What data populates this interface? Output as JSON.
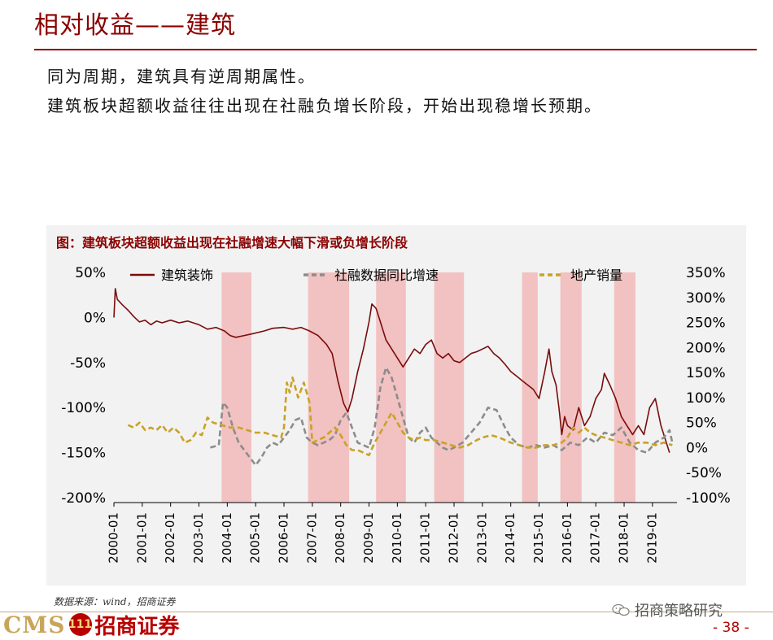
{
  "slide": {
    "title": "相对收益——建筑",
    "bullet1": "同为周期，建筑具有逆周期属性。",
    "bullet2": "建筑板块超额收益往往出现在社融负增长阶段，开始出现稳增长预期。",
    "source": "数据来源：wind，招商证券",
    "wechat": "招商策略研究",
    "page": "- 38 -",
    "logo_cms": "CMS",
    "logo_badge": "111",
    "logo_name": "招商证券",
    "colors": {
      "accent": "#8b0000",
      "series1": "#7a0c0c",
      "series2": "#8c8c8c",
      "series3": "#c9a227",
      "band": "#f2b8b8"
    }
  },
  "chart_data": {
    "type": "line",
    "title": "图：建筑板块超额收益出现在社融增速大幅下滑或负增长阶段",
    "x_tick_labels": [
      "2000-01",
      "2001-01",
      "2002-01",
      "2003-01",
      "2004-01",
      "2005-01",
      "2006-01",
      "2007-01",
      "2008-01",
      "2009-01",
      "2010-01",
      "2011-01",
      "2012-01",
      "2013-01",
      "2014-01",
      "2015-01",
      "2016-01",
      "2017-01",
      "2018-01",
      "2019-01"
    ],
    "y_left": {
      "ticks": [
        "50%",
        "0%",
        "-50%",
        "-100%",
        "-150%",
        "-200%"
      ],
      "range": [
        -200,
        50
      ]
    },
    "y_right": {
      "ticks": [
        "350%",
        "300%",
        "250%",
        "200%",
        "150%",
        "100%",
        "50%",
        "0%",
        "-50%",
        "-100%"
      ],
      "range": [
        -100,
        350
      ]
    },
    "legend": [
      "建筑装饰",
      "社融数据同比增速",
      "地产销量"
    ],
    "legend_position": "top",
    "shaded_periods": [
      [
        2003.8,
        2004.85
      ],
      [
        2006.85,
        2008.3
      ],
      [
        2009.25,
        2010.3
      ],
      [
        2011.3,
        2012.35
      ],
      [
        2014.4,
        2014.95
      ],
      [
        2015.75,
        2016.5
      ],
      [
        2017.65,
        2018.4
      ]
    ],
    "series": [
      {
        "name": "建筑装饰",
        "axis": "left",
        "points": [
          [
            2000.0,
            0
          ],
          [
            2000.05,
            32
          ],
          [
            2000.12,
            20
          ],
          [
            2000.3,
            14
          ],
          [
            2000.5,
            8
          ],
          [
            2000.7,
            1
          ],
          [
            2000.9,
            -5
          ],
          [
            2001.1,
            -3
          ],
          [
            2001.3,
            -8
          ],
          [
            2001.5,
            -4
          ],
          [
            2001.7,
            -6
          ],
          [
            2002.0,
            -3
          ],
          [
            2002.3,
            -6
          ],
          [
            2002.6,
            -4
          ],
          [
            2003.0,
            -8
          ],
          [
            2003.3,
            -13
          ],
          [
            2003.6,
            -11
          ],
          [
            2003.9,
            -15
          ],
          [
            2004.1,
            -20
          ],
          [
            2004.3,
            -22
          ],
          [
            2004.6,
            -20
          ],
          [
            2004.9,
            -18
          ],
          [
            2005.3,
            -15
          ],
          [
            2005.6,
            -12
          ],
          [
            2006.0,
            -11
          ],
          [
            2006.3,
            -13
          ],
          [
            2006.6,
            -11
          ],
          [
            2006.9,
            -15
          ],
          [
            2007.2,
            -20
          ],
          [
            2007.5,
            -30
          ],
          [
            2007.7,
            -40
          ],
          [
            2007.9,
            -70
          ],
          [
            2008.1,
            -95
          ],
          [
            2008.25,
            -105
          ],
          [
            2008.4,
            -90
          ],
          [
            2008.6,
            -60
          ],
          [
            2008.8,
            -35
          ],
          [
            2009.0,
            -5
          ],
          [
            2009.1,
            15
          ],
          [
            2009.25,
            10
          ],
          [
            2009.4,
            -5
          ],
          [
            2009.6,
            -25
          ],
          [
            2009.8,
            -35
          ],
          [
            2010.0,
            -45
          ],
          [
            2010.2,
            -55
          ],
          [
            2010.4,
            -45
          ],
          [
            2010.6,
            -35
          ],
          [
            2010.8,
            -40
          ],
          [
            2011.0,
            -30
          ],
          [
            2011.2,
            -25
          ],
          [
            2011.4,
            -40
          ],
          [
            2011.6,
            -45
          ],
          [
            2011.8,
            -40
          ],
          [
            2012.0,
            -48
          ],
          [
            2012.2,
            -50
          ],
          [
            2012.4,
            -45
          ],
          [
            2012.6,
            -40
          ],
          [
            2012.8,
            -38
          ],
          [
            2013.0,
            -35
          ],
          [
            2013.2,
            -32
          ],
          [
            2013.4,
            -40
          ],
          [
            2013.6,
            -45
          ],
          [
            2013.8,
            -52
          ],
          [
            2014.0,
            -60
          ],
          [
            2014.2,
            -65
          ],
          [
            2014.4,
            -70
          ],
          [
            2014.6,
            -75
          ],
          [
            2014.8,
            -80
          ],
          [
            2015.0,
            -90
          ],
          [
            2015.2,
            -60
          ],
          [
            2015.35,
            -35
          ],
          [
            2015.45,
            -60
          ],
          [
            2015.6,
            -75
          ],
          [
            2015.7,
            -100
          ],
          [
            2015.8,
            -130
          ],
          [
            2015.9,
            -110
          ],
          [
            2016.0,
            -120
          ],
          [
            2016.2,
            -125
          ],
          [
            2016.4,
            -100
          ],
          [
            2016.6,
            -120
          ],
          [
            2016.8,
            -110
          ],
          [
            2017.0,
            -90
          ],
          [
            2017.2,
            -80
          ],
          [
            2017.3,
            -62
          ],
          [
            2017.5,
            -75
          ],
          [
            2017.7,
            -90
          ],
          [
            2017.9,
            -110
          ],
          [
            2018.1,
            -120
          ],
          [
            2018.3,
            -130
          ],
          [
            2018.5,
            -120
          ],
          [
            2018.7,
            -130
          ],
          [
            2018.9,
            -100
          ],
          [
            2019.1,
            -90
          ],
          [
            2019.3,
            -120
          ],
          [
            2019.5,
            -140
          ],
          [
            2019.6,
            -150
          ]
        ]
      },
      {
        "name": "社融数据同比增速",
        "axis": "right",
        "points": [
          [
            2003.4,
            0
          ],
          [
            2003.7,
            5
          ],
          [
            2003.85,
            90
          ],
          [
            2004.0,
            80
          ],
          [
            2004.2,
            40
          ],
          [
            2004.4,
            10
          ],
          [
            2004.6,
            -5
          ],
          [
            2004.8,
            -20
          ],
          [
            2005.0,
            -35
          ],
          [
            2005.2,
            -20
          ],
          [
            2005.4,
            0
          ],
          [
            2005.6,
            10
          ],
          [
            2005.8,
            5
          ],
          [
            2006.0,
            20
          ],
          [
            2006.2,
            35
          ],
          [
            2006.4,
            55
          ],
          [
            2006.6,
            60
          ],
          [
            2006.8,
            20
          ],
          [
            2007.0,
            10
          ],
          [
            2007.2,
            5
          ],
          [
            2007.4,
            10
          ],
          [
            2007.6,
            15
          ],
          [
            2007.8,
            25
          ],
          [
            2008.0,
            55
          ],
          [
            2008.2,
            70
          ],
          [
            2008.4,
            40
          ],
          [
            2008.6,
            10
          ],
          [
            2008.8,
            5
          ],
          [
            2009.0,
            0
          ],
          [
            2009.2,
            40
          ],
          [
            2009.4,
            120
          ],
          [
            2009.6,
            160
          ],
          [
            2009.8,
            140
          ],
          [
            2010.0,
            100
          ],
          [
            2010.2,
            60
          ],
          [
            2010.4,
            20
          ],
          [
            2010.6,
            10
          ],
          [
            2010.8,
            30
          ],
          [
            2011.0,
            40
          ],
          [
            2011.2,
            20
          ],
          [
            2011.4,
            10
          ],
          [
            2011.6,
            0
          ],
          [
            2011.8,
            -5
          ],
          [
            2012.0,
            0
          ],
          [
            2012.3,
            10
          ],
          [
            2012.6,
            30
          ],
          [
            2012.9,
            50
          ],
          [
            2013.2,
            80
          ],
          [
            2013.5,
            75
          ],
          [
            2013.8,
            40
          ],
          [
            2014.0,
            20
          ],
          [
            2014.3,
            5
          ],
          [
            2014.6,
            0
          ],
          [
            2014.9,
            5
          ],
          [
            2015.2,
            0
          ],
          [
            2015.5,
            5
          ],
          [
            2015.8,
            -5
          ],
          [
            2016.1,
            10
          ],
          [
            2016.4,
            5
          ],
          [
            2016.7,
            20
          ],
          [
            2017.0,
            10
          ],
          [
            2017.3,
            30
          ],
          [
            2017.6,
            25
          ],
          [
            2017.9,
            40
          ],
          [
            2018.2,
            10
          ],
          [
            2018.5,
            -5
          ],
          [
            2018.8,
            -10
          ],
          [
            2019.1,
            10
          ],
          [
            2019.4,
            20
          ],
          [
            2019.6,
            35
          ],
          [
            2019.7,
            10
          ]
        ]
      },
      {
        "name": "地产销量",
        "axis": "right",
        "points": [
          [
            2000.5,
            45
          ],
          [
            2000.7,
            40
          ],
          [
            2000.9,
            50
          ],
          [
            2001.1,
            35
          ],
          [
            2001.3,
            40
          ],
          [
            2001.5,
            35
          ],
          [
            2001.7,
            45
          ],
          [
            2001.9,
            30
          ],
          [
            2002.1,
            40
          ],
          [
            2002.3,
            30
          ],
          [
            2002.5,
            10
          ],
          [
            2002.7,
            15
          ],
          [
            2002.9,
            30
          ],
          [
            2003.1,
            25
          ],
          [
            2003.3,
            60
          ],
          [
            2003.5,
            50
          ],
          [
            2003.8,
            45
          ],
          [
            2004.1,
            40
          ],
          [
            2004.4,
            40
          ],
          [
            2004.7,
            35
          ],
          [
            2005.0,
            30
          ],
          [
            2005.3,
            30
          ],
          [
            2005.6,
            25
          ],
          [
            2005.9,
            20
          ],
          [
            2006.0,
            40
          ],
          [
            2006.1,
            130
          ],
          [
            2006.2,
            110
          ],
          [
            2006.3,
            140
          ],
          [
            2006.5,
            100
          ],
          [
            2006.7,
            130
          ],
          [
            2006.9,
            90
          ],
          [
            2007.0,
            10
          ],
          [
            2007.2,
            15
          ],
          [
            2007.4,
            20
          ],
          [
            2007.6,
            30
          ],
          [
            2007.8,
            40
          ],
          [
            2008.0,
            25
          ],
          [
            2008.2,
            5
          ],
          [
            2008.4,
            -5
          ],
          [
            2008.6,
            -5
          ],
          [
            2008.8,
            -10
          ],
          [
            2009.0,
            -15
          ],
          [
            2009.2,
            10
          ],
          [
            2009.4,
            30
          ],
          [
            2009.6,
            50
          ],
          [
            2009.8,
            70
          ],
          [
            2010.0,
            50
          ],
          [
            2010.2,
            30
          ],
          [
            2010.4,
            20
          ],
          [
            2010.6,
            15
          ],
          [
            2010.8,
            20
          ],
          [
            2011.0,
            15
          ],
          [
            2011.3,
            15
          ],
          [
            2011.6,
            10
          ],
          [
            2011.9,
            5
          ],
          [
            2012.2,
            0
          ],
          [
            2012.5,
            5
          ],
          [
            2012.8,
            15
          ],
          [
            2013.0,
            20
          ],
          [
            2013.3,
            25
          ],
          [
            2013.6,
            20
          ],
          [
            2013.8,
            15
          ],
          [
            2014.0,
            10
          ],
          [
            2014.3,
            5
          ],
          [
            2014.6,
            0
          ],
          [
            2014.9,
            0
          ],
          [
            2015.2,
            5
          ],
          [
            2015.5,
            5
          ],
          [
            2015.8,
            10
          ],
          [
            2016.0,
            20
          ],
          [
            2016.2,
            40
          ],
          [
            2016.4,
            30
          ],
          [
            2016.6,
            40
          ],
          [
            2016.8,
            30
          ],
          [
            2017.0,
            25
          ],
          [
            2017.3,
            20
          ],
          [
            2017.6,
            15
          ],
          [
            2017.9,
            10
          ],
          [
            2018.2,
            5
          ],
          [
            2018.5,
            10
          ],
          [
            2018.8,
            10
          ],
          [
            2019.1,
            5
          ],
          [
            2019.4,
            10
          ],
          [
            2019.7,
            5
          ]
        ]
      }
    ]
  }
}
